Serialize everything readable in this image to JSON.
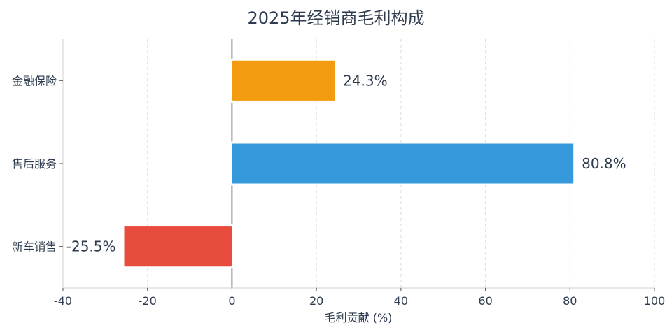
{
  "chart_data": {
    "type": "bar",
    "orientation": "horizontal",
    "title": "2025年经销商毛利构成",
    "xlabel": "毛利贡献 (%)",
    "ylabel": "",
    "xlim": [
      -40,
      100
    ],
    "xticks": [
      "-40",
      "-20",
      "0",
      "20",
      "40",
      "60",
      "80",
      "100"
    ],
    "categories": [
      "金融保险",
      "售后服务",
      "新车销售"
    ],
    "values": [
      24.3,
      80.8,
      -25.5
    ],
    "labels": [
      "24.3%",
      "80.8%",
      "-25.5%"
    ],
    "colors": [
      "#f39c12",
      "#3498db",
      "#e74c3c"
    ],
    "grid": "x-dashed",
    "legend": "none"
  }
}
